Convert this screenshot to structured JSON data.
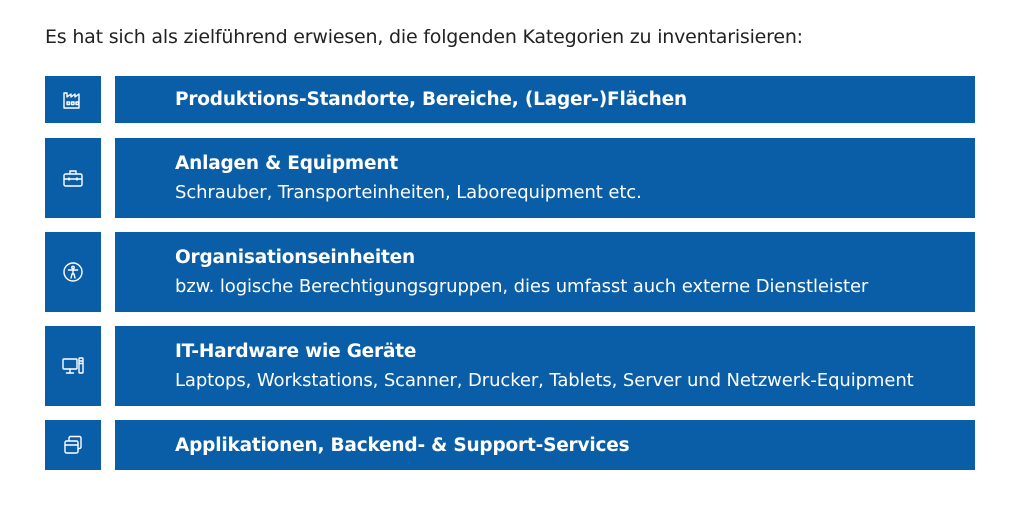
{
  "intro": "Es hat sich als zielführend erwiesen, die folgenden Kategorien zu inventarisieren:",
  "accent": "#0a5ea8",
  "categories": [
    {
      "icon": "factory-icon",
      "title": "Produktions-Standorte, Bereiche, (Lager-)Flächen",
      "subtitle": ""
    },
    {
      "icon": "toolbox-icon",
      "title": "Anlagen & Equipment",
      "subtitle": "Schrauber, Transporteinheiten, Laborequipment etc."
    },
    {
      "icon": "person-circle-icon",
      "title": "Organisationseinheiten",
      "subtitle": "bzw. logische Berechtigungsgruppen, dies umfasst auch externe Dienstleister"
    },
    {
      "icon": "computer-icon",
      "title": "IT-Hardware wie Geräte",
      "subtitle": "Laptops, Workstations, Scanner, Drucker, Tablets, Server und Netzwerk-Equipment"
    },
    {
      "icon": "windows-icon",
      "title": "Applikationen, Backend- & Support-Services",
      "subtitle": ""
    }
  ]
}
